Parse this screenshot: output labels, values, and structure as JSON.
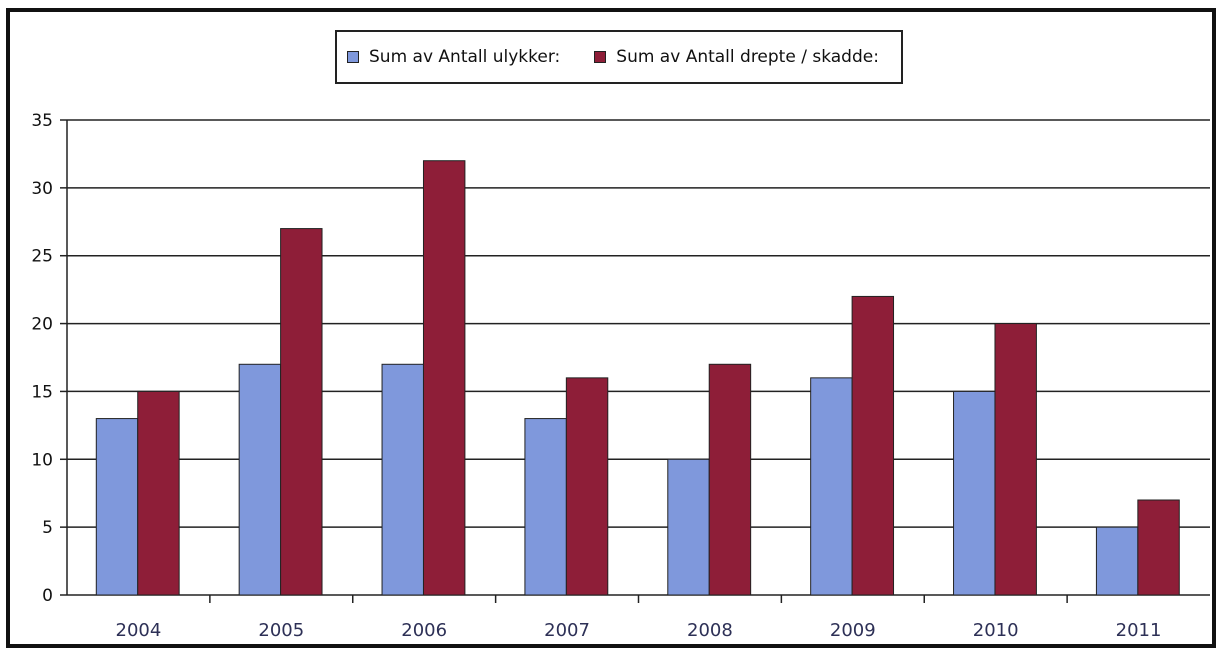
{
  "chart_data": {
    "type": "bar",
    "categories": [
      "2004",
      "2005",
      "2006",
      "2007",
      "2008",
      "2009",
      "2010",
      "2011"
    ],
    "series": [
      {
        "name": "Sum av Antall ulykker:",
        "values": [
          13,
          17,
          17,
          13,
          10,
          16,
          15,
          5
        ],
        "color": "#7f98dc"
      },
      {
        "name": "Sum av Antall drepte / skadde:",
        "values": [
          15,
          27,
          32,
          16,
          17,
          22,
          20,
          7
        ],
        "color": "#8e1e38"
      }
    ],
    "ylim": [
      0,
      35
    ],
    "yticks": [
      "0",
      "5",
      "10",
      "15",
      "20",
      "25",
      "30",
      "35"
    ],
    "grid": true,
    "legend_position": "top-center"
  }
}
